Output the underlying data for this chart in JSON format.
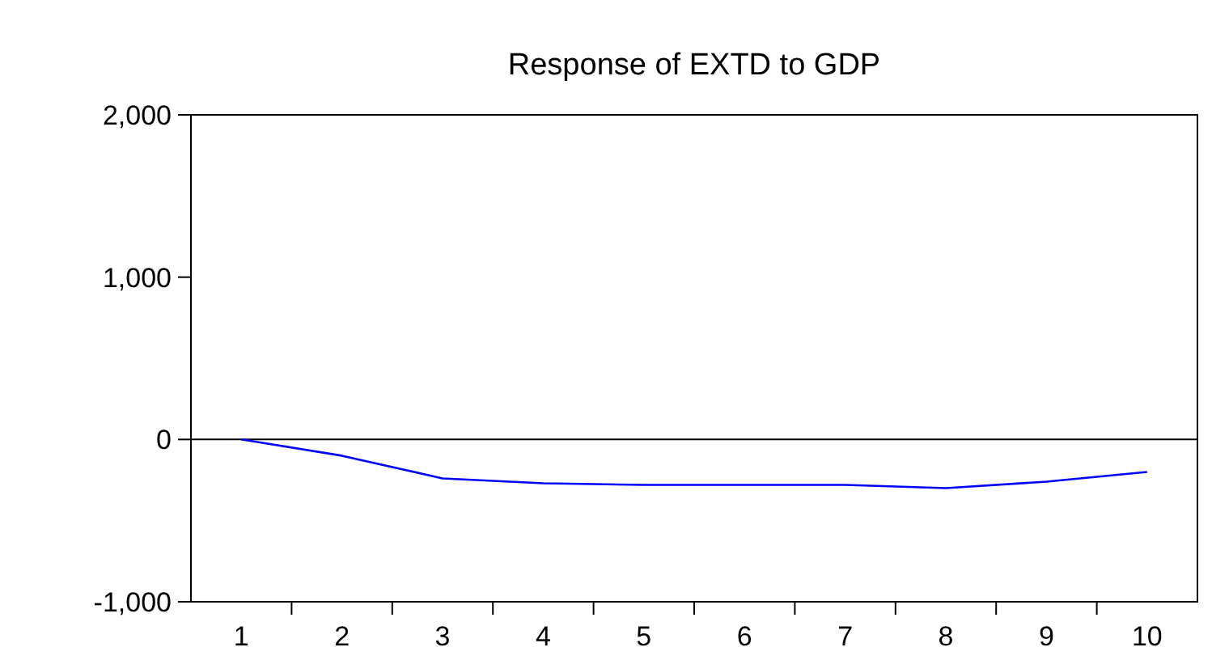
{
  "chart_data": {
    "type": "line",
    "title": "Response of EXTD to GDP",
    "categories": [
      "1",
      "2",
      "3",
      "4",
      "5",
      "6",
      "7",
      "8",
      "9",
      "10"
    ],
    "series": [
      {
        "color": "#0000ff",
        "values": [
          0,
          -100,
          -240,
          -270,
          -280,
          -280,
          -280,
          -300,
          -260,
          -200
        ]
      }
    ],
    "ylim": [
      -1000,
      2000
    ],
    "yticks": [
      {
        "value": -1000,
        "label": "-1,000"
      },
      {
        "value": 0,
        "label": "0"
      },
      {
        "value": 1000,
        "label": "1,000"
      },
      {
        "value": 2000,
        "label": "2,000"
      }
    ],
    "ref_lines": [
      {
        "axis": "y",
        "value": 0,
        "color": "#000000"
      }
    ],
    "grid": false,
    "marker": "none",
    "line_style": "solid"
  }
}
